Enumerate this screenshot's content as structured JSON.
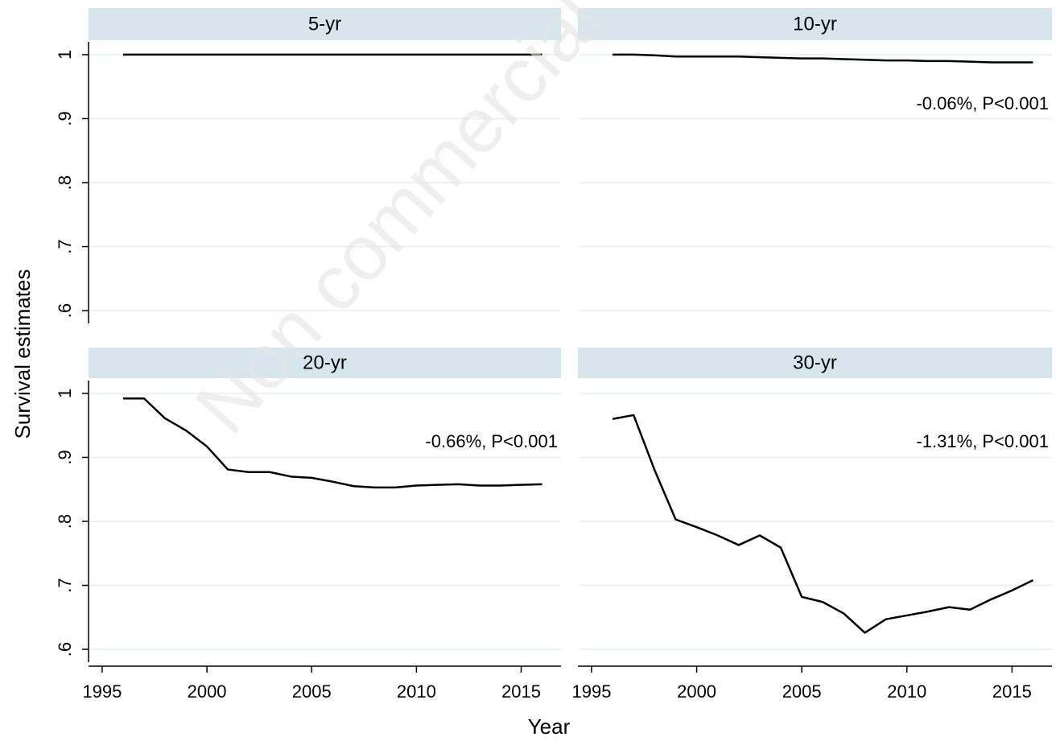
{
  "watermark": "Non commercial",
  "ylabel": "Survival estimates",
  "xlabel": "Year",
  "chart_data": [
    {
      "type": "line",
      "title": "5-yr",
      "x": [
        1996,
        1997,
        1998,
        1999,
        2000,
        2001,
        2002,
        2003,
        2004,
        2005,
        2006,
        2007,
        2008,
        2009,
        2010,
        2011,
        2012,
        2013,
        2014,
        2015,
        2016
      ],
      "values": [
        1,
        1,
        1,
        1,
        1,
        1,
        1,
        1,
        1,
        1,
        1,
        1,
        1,
        1,
        1,
        1,
        1,
        1,
        1,
        1,
        1
      ],
      "color": "#000000",
      "xlim": [
        1994.35,
        2016.9
      ],
      "ylim": [
        0.58,
        1.02
      ],
      "yticks": [
        {
          "value": 0.6,
          "label": ".6"
        },
        {
          "value": 0.7,
          "label": ".7"
        },
        {
          "value": 0.8,
          "label": ".8"
        },
        {
          "value": 0.9,
          "label": ".9"
        },
        1
      ],
      "grid": true
    },
    {
      "type": "line",
      "title": "10-yr",
      "annotation": "-0.06%, P<0.001",
      "x": [
        1996,
        1997,
        1998,
        1999,
        2000,
        2001,
        2002,
        2003,
        2004,
        2005,
        2006,
        2007,
        2008,
        2009,
        2010,
        2011,
        2012,
        2013,
        2014,
        2015,
        2016
      ],
      "values": [
        1.0,
        1.0,
        0.999,
        0.997,
        0.997,
        0.997,
        0.997,
        0.996,
        0.995,
        0.994,
        0.994,
        0.993,
        0.992,
        0.991,
        0.991,
        0.99,
        0.99,
        0.989,
        0.988,
        0.988,
        0.988
      ],
      "color": "#000000",
      "xlim": [
        1994.35,
        2016.9
      ],
      "ylim": [
        0.58,
        1.02
      ],
      "yticks": [
        0.6,
        0.7,
        0.8,
        0.9,
        1
      ],
      "grid": true
    },
    {
      "type": "line",
      "title": "20-yr",
      "annotation": "-0.66%, P<0.001",
      "x": [
        1996,
        1997,
        1998,
        1999,
        2000,
        2001,
        2002,
        2003,
        2004,
        2005,
        2006,
        2007,
        2008,
        2009,
        2010,
        2011,
        2012,
        2013,
        2014,
        2015,
        2016
      ],
      "values": [
        0.992,
        0.992,
        0.961,
        0.942,
        0.917,
        0.881,
        0.877,
        0.877,
        0.87,
        0.868,
        0.862,
        0.855,
        0.853,
        0.853,
        0.856,
        0.857,
        0.858,
        0.856,
        0.856,
        0.857,
        0.858
      ],
      "color": "#000000",
      "xlim": [
        1994.35,
        2016.9
      ],
      "ylim": [
        0.58,
        1.02
      ],
      "yticks": [
        {
          "value": 0.6,
          "label": ".6"
        },
        {
          "value": 0.7,
          "label": ".7"
        },
        {
          "value": 0.8,
          "label": ".8"
        },
        {
          "value": 0.9,
          "label": ".9"
        },
        1
      ],
      "xticks": [
        1995,
        2000,
        2005,
        2010,
        2015
      ],
      "grid": true
    },
    {
      "type": "line",
      "title": "30-yr",
      "annotation": "-1.31%, P<0.001",
      "x": [
        1996,
        1997,
        1998,
        1999,
        2000,
        2001,
        2002,
        2003,
        2004,
        2005,
        2006,
        2007,
        2008,
        2009,
        2010,
        2011,
        2012,
        2013,
        2014,
        2015,
        2016
      ],
      "values": [
        0.96,
        0.966,
        0.88,
        0.803,
        0.791,
        0.778,
        0.763,
        0.778,
        0.759,
        0.682,
        0.674,
        0.656,
        0.626,
        0.647,
        0.653,
        0.659,
        0.666,
        0.662,
        0.678,
        0.692,
        0.708
      ],
      "color": "#000000",
      "xlim": [
        1994.35,
        2016.9
      ],
      "ylim": [
        0.58,
        1.02
      ],
      "yticks": [
        0.6,
        0.7,
        0.8,
        0.9,
        1
      ],
      "xticks": [
        1995,
        2000,
        2005,
        2010,
        2015
      ],
      "grid": true
    }
  ]
}
